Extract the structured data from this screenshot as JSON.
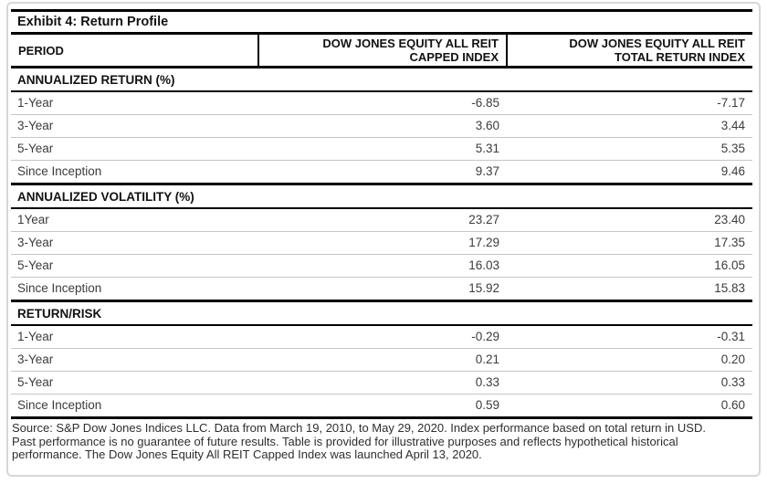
{
  "title": "Exhibit 4: Return Profile",
  "table": {
    "header": {
      "period": "PERIOD",
      "capped_lines": [
        "DOW JONES EQUITY ALL REIT",
        "CAPPED INDEX"
      ],
      "total_lines": [
        "DOW JONES EQUITY ALL REIT",
        "TOTAL RETURN INDEX"
      ]
    },
    "sections": [
      {
        "label": "ANNUALIZED RETURN (%)",
        "rows": [
          {
            "period": "1-Year",
            "capped": "-6.85",
            "total": "-7.17"
          },
          {
            "period": "3-Year",
            "capped": "3.60",
            "total": "3.44"
          },
          {
            "period": "5-Year",
            "capped": "5.31",
            "total": "5.35"
          },
          {
            "period": "Since Inception",
            "capped": "9.37",
            "total": "9.46"
          }
        ]
      },
      {
        "label": "ANNUALIZED VOLATILITY (%)",
        "rows": [
          {
            "period": "1Year",
            "capped": "23.27",
            "total": "23.40"
          },
          {
            "period": "3-Year",
            "capped": "17.29",
            "total": "17.35"
          },
          {
            "period": "5-Year",
            "capped": "16.03",
            "total": "16.05"
          },
          {
            "period": "Since Inception",
            "capped": "15.92",
            "total": "15.83"
          }
        ]
      },
      {
        "label": "RETURN/RISK",
        "rows": [
          {
            "period": "1-Year",
            "capped": "-0.29",
            "total": "-0.31"
          },
          {
            "period": "3-Year",
            "capped": "0.21",
            "total": "0.20"
          },
          {
            "period": "5-Year",
            "capped": "0.33",
            "total": "0.33"
          },
          {
            "period": "Since Inception",
            "capped": "0.59",
            "total": "0.60"
          }
        ]
      }
    ]
  },
  "footnote": {
    "lines": [
      "Source: S&P Dow Jones Indices LLC. Data from March 19, 2010, to May 29, 2020. Index performance based on total return in USD.",
      "Past performance is no guarantee of future results. Table is provided for illustrative purposes and reflects hypothetical historical",
      "performance. The Dow Jones Equity All REIT Capped Index was launched April 13, 2020."
    ]
  }
}
